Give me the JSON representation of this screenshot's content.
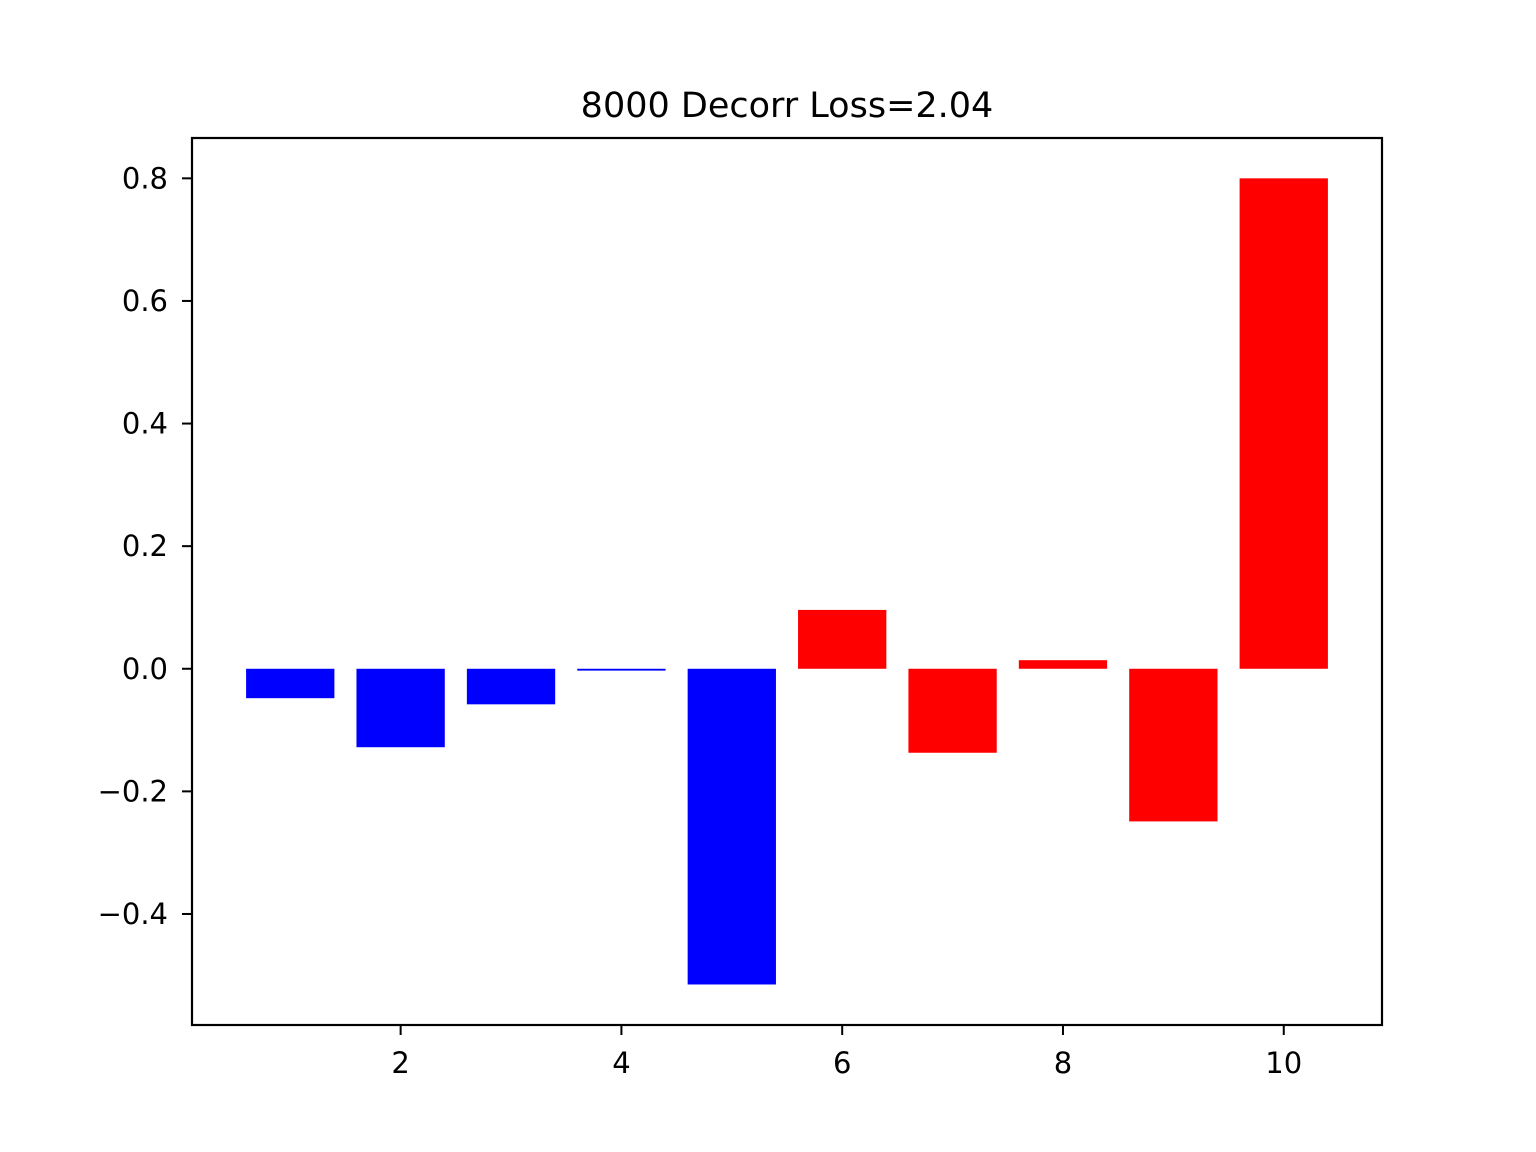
{
  "chart_data": {
    "type": "bar",
    "title": "8000 Decorr Loss=2.04",
    "xlabel": "",
    "ylabel": "",
    "x": [
      1,
      2,
      3,
      4,
      5,
      6,
      7,
      8,
      9,
      10
    ],
    "values": [
      -0.048,
      -0.128,
      -0.058,
      -0.003,
      -0.515,
      0.096,
      -0.137,
      0.014,
      -0.249,
      0.8
    ],
    "bar_colors": [
      "#0000ff",
      "#0000ff",
      "#0000ff",
      "#0000ff",
      "#0000ff",
      "#ff0000",
      "#ff0000",
      "#ff0000",
      "#ff0000",
      "#ff0000"
    ],
    "xlim": [
      0.11,
      10.89
    ],
    "ylim": [
      -0.5811,
      0.8658
    ],
    "xticks": [
      2,
      4,
      6,
      8,
      10
    ],
    "xtick_labels": [
      "2",
      "4",
      "6",
      "8",
      "10"
    ],
    "yticks": [
      -0.4,
      -0.2,
      0.0,
      0.2,
      0.4,
      0.6,
      0.8
    ],
    "ytick_labels": [
      "−0.4",
      "−0.2",
      "0.0",
      "0.2",
      "0.4",
      "0.6",
      "0.8"
    ],
    "grid": false,
    "legend": "none"
  }
}
